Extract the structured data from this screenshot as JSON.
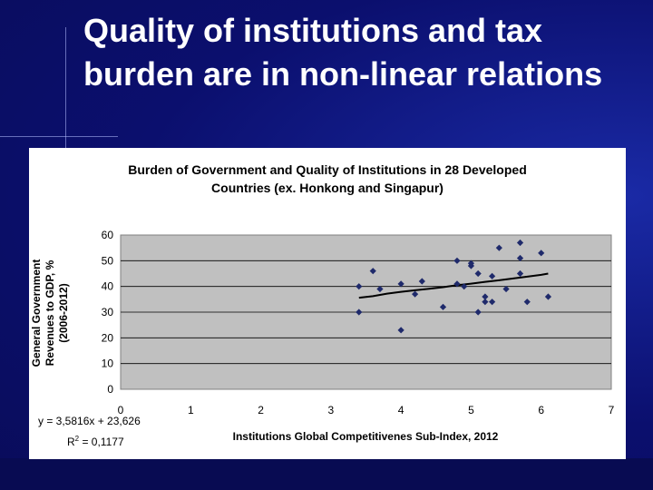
{
  "slide": {
    "title": "Quality of institutions and tax burden are in non-linear relations"
  },
  "colors": {
    "background": "#0b0f6e",
    "plot_area": "#c0c0c0",
    "marker": "#1f2a6b",
    "trendline": "#000000"
  },
  "chart_data": {
    "type": "scatter",
    "title": "Burden of Government and Quality of Institutions in 28 Developed Countries (ex. Honkong and Singapur)",
    "title_lines": [
      "Burden of Government and Quality of Institutions in 28 Developed",
      "Countries (ex. Honkong and Singapur)"
    ],
    "xlabel": "Institutions Global Competitivenes Sub-Index, 2012",
    "ylabel_lines": [
      "General Government",
      "Revenues to GDP, %",
      "(2006-2012)"
    ],
    "xlim": [
      0,
      7
    ],
    "ylim": [
      0,
      60
    ],
    "x_ticks": [
      0,
      1,
      2,
      3,
      4,
      5,
      6,
      7
    ],
    "y_ticks": [
      0,
      10,
      20,
      30,
      40,
      50,
      60
    ],
    "grid": "horizontal",
    "marker": "diamond",
    "points": [
      {
        "x": 3.4,
        "y": 40
      },
      {
        "x": 3.4,
        "y": 30
      },
      {
        "x": 3.6,
        "y": 46
      },
      {
        "x": 3.7,
        "y": 39
      },
      {
        "x": 4.0,
        "y": 41
      },
      {
        "x": 4.0,
        "y": 23
      },
      {
        "x": 4.2,
        "y": 37
      },
      {
        "x": 4.3,
        "y": 42
      },
      {
        "x": 4.6,
        "y": 32
      },
      {
        "x": 4.8,
        "y": 50
      },
      {
        "x": 4.8,
        "y": 41
      },
      {
        "x": 4.9,
        "y": 40
      },
      {
        "x": 5.0,
        "y": 49
      },
      {
        "x": 5.0,
        "y": 48
      },
      {
        "x": 5.1,
        "y": 45
      },
      {
        "x": 5.1,
        "y": 30
      },
      {
        "x": 5.2,
        "y": 36
      },
      {
        "x": 5.2,
        "y": 34
      },
      {
        "x": 5.3,
        "y": 44
      },
      {
        "x": 5.3,
        "y": 34
      },
      {
        "x": 5.4,
        "y": 55
      },
      {
        "x": 5.5,
        "y": 39
      },
      {
        "x": 5.7,
        "y": 57
      },
      {
        "x": 5.7,
        "y": 51
      },
      {
        "x": 5.7,
        "y": 45
      },
      {
        "x": 5.8,
        "y": 34
      },
      {
        "x": 6.0,
        "y": 53
      },
      {
        "x": 6.1,
        "y": 36
      }
    ],
    "trendline": {
      "type": "logarithmic",
      "equation": "y = 3,5816x + 23,626",
      "r2_label": "R",
      "r2_exp": "2",
      "r2_value": " = 0,1177",
      "samples": [
        {
          "x": 3.4,
          "y": 35.6
        },
        {
          "x": 3.6,
          "y": 36.2
        },
        {
          "x": 3.8,
          "y": 37.2
        },
        {
          "x": 4.0,
          "y": 37.9
        },
        {
          "x": 4.2,
          "y": 38.5
        },
        {
          "x": 4.4,
          "y": 39.1
        },
        {
          "x": 4.6,
          "y": 39.7
        },
        {
          "x": 4.8,
          "y": 40.5
        },
        {
          "x": 5.0,
          "y": 41.1
        },
        {
          "x": 5.2,
          "y": 41.8
        },
        {
          "x": 5.4,
          "y": 42.4
        },
        {
          "x": 5.6,
          "y": 43.1
        },
        {
          "x": 5.8,
          "y": 43.8
        },
        {
          "x": 6.0,
          "y": 44.5
        },
        {
          "x": 6.1,
          "y": 45.0
        }
      ]
    }
  }
}
